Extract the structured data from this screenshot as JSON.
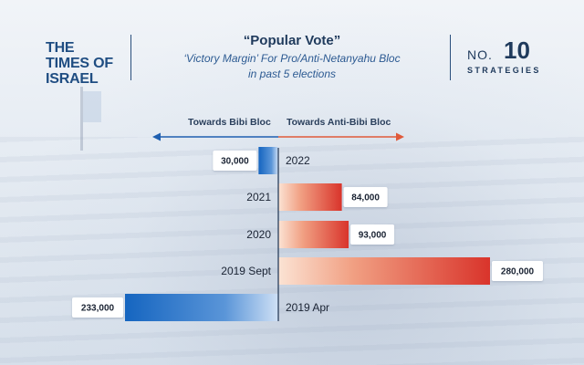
{
  "header": {
    "logo": "THE TIMES OF ISRAEL",
    "title": "“Popular Vote”",
    "subtitle_line1": "‘Victory Margin’ For Pro/Anti-Netanyahu Bloc",
    "subtitle_line2": "in past 5 elections",
    "badge_no": "NO.",
    "badge_number": "10",
    "badge_text": "STRATEGIES"
  },
  "colors": {
    "bibi_blue": "#1565c0",
    "anti_red": "#d9342b",
    "title_navy": "#1f3a5c"
  },
  "chart_data": {
    "type": "bar",
    "orientation": "horizontal-diverging",
    "direction_labels": {
      "left": "Towards Bibi Bloc",
      "right": "Towards Anti-Bibi Bloc"
    },
    "categories": [
      "2022",
      "2021",
      "2020",
      "2019 Sept",
      "2019 Apr"
    ],
    "values": [
      {
        "category": "2022",
        "value": 30000,
        "side": "left",
        "label": "30,000"
      },
      {
        "category": "2021",
        "value": 84000,
        "side": "right",
        "label": "84,000"
      },
      {
        "category": "2020",
        "value": 93000,
        "side": "right",
        "label": "93,000"
      },
      {
        "category": "2019 Sept",
        "value": 280000,
        "side": "right",
        "label": "280,000"
      },
      {
        "category": "2019 Apr",
        "value": 233000,
        "side": "left",
        "label": "233,000"
      }
    ],
    "xlim": [
      -233000,
      280000
    ],
    "grid": false
  }
}
